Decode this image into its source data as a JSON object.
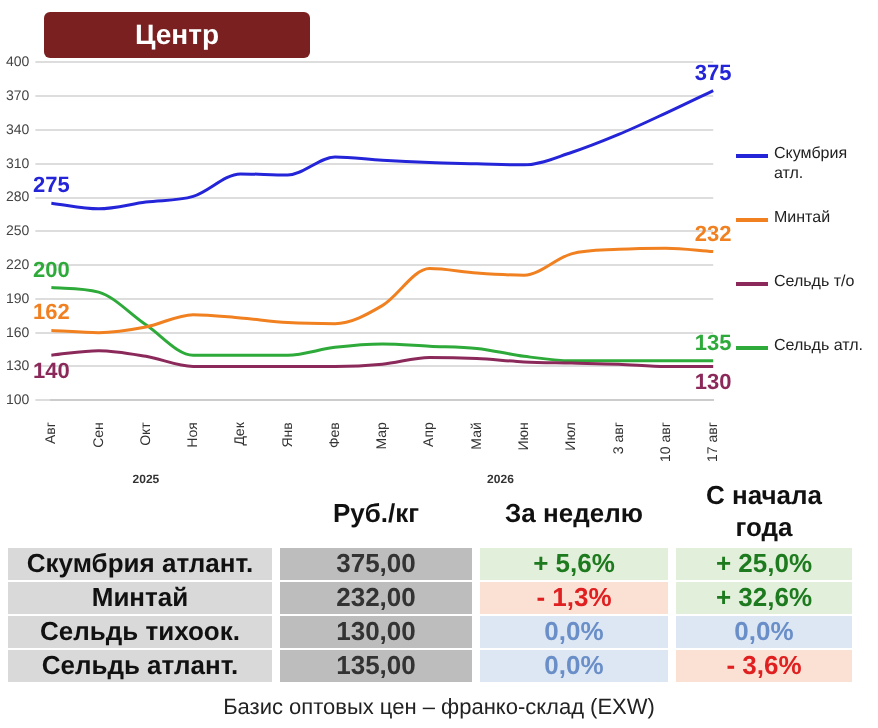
{
  "chart_data": {
    "type": "line",
    "title": "Центр",
    "categories": [
      "Авг",
      "Сен",
      "Окт",
      "Ноя",
      "Дек",
      "Янв",
      "Фев",
      "Мар",
      "Апр",
      "Май",
      "Июн",
      "Июл",
      "3 авг",
      "10 авг",
      "17 авг"
    ],
    "series": [
      {
        "name": "Скумбрия атл.",
        "color": "#2424d8",
        "values": [
          275,
          270,
          276,
          281,
          301,
          300,
          316,
          313,
          311,
          310,
          309,
          320,
          336,
          355,
          375
        ],
        "value_labels": [
          "275",
          null,
          null,
          null,
          null,
          null,
          null,
          null,
          null,
          null,
          null,
          null,
          null,
          null,
          "375"
        ]
      },
      {
        "name": "Минтай",
        "color": "#f08020",
        "values": [
          162,
          160,
          165,
          176,
          173,
          169,
          168,
          184,
          217,
          213,
          211,
          230,
          234,
          235,
          232
        ],
        "value_labels": [
          "162",
          null,
          null,
          null,
          null,
          null,
          null,
          null,
          null,
          null,
          null,
          null,
          null,
          null,
          "232"
        ]
      },
      {
        "name": "Сельдь т/о",
        "color": "#8b2a5a",
        "values": [
          140,
          144,
          139,
          130,
          130,
          130,
          130,
          132,
          138,
          137,
          134,
          133,
          132,
          130,
          130
        ],
        "value_labels": [
          "140",
          null,
          null,
          null,
          null,
          null,
          null,
          null,
          null,
          null,
          null,
          null,
          null,
          null,
          "130"
        ]
      },
      {
        "name": "Сельдь атл.",
        "color": "#2eaa3a",
        "values": [
          200,
          196,
          167,
          140,
          140,
          140,
          147,
          150,
          148,
          146,
          139,
          135,
          135,
          135,
          135
        ],
        "value_labels": [
          "200",
          null,
          null,
          null,
          null,
          null,
          null,
          null,
          null,
          null,
          null,
          null,
          null,
          null,
          "135"
        ]
      }
    ],
    "ylim": [
      100,
      400
    ],
    "yticks": [
      100,
      130,
      160,
      190,
      220,
      250,
      280,
      310,
      340,
      370,
      400
    ],
    "grid": "y",
    "legend": "right",
    "marker": "none",
    "line_style": "solid",
    "annotations": [
      "2025",
      "2026",
      "Руб./кг",
      "За неделю",
      "С начала года",
      "Скумбрия атлант.",
      "375,00",
      "+ 5,6%",
      "+ 25,0%",
      "Минтай",
      "232,00",
      "- 1,3%",
      "+ 32,6%",
      "Сельдь тихоок.",
      "130,00",
      "0,0%",
      "0,0%",
      "Сельдь атлант.",
      "135,00",
      "0,0%",
      "- 3,6%",
      "Базис оптовых цен – франко-склад (EXW)"
    ]
  }
}
